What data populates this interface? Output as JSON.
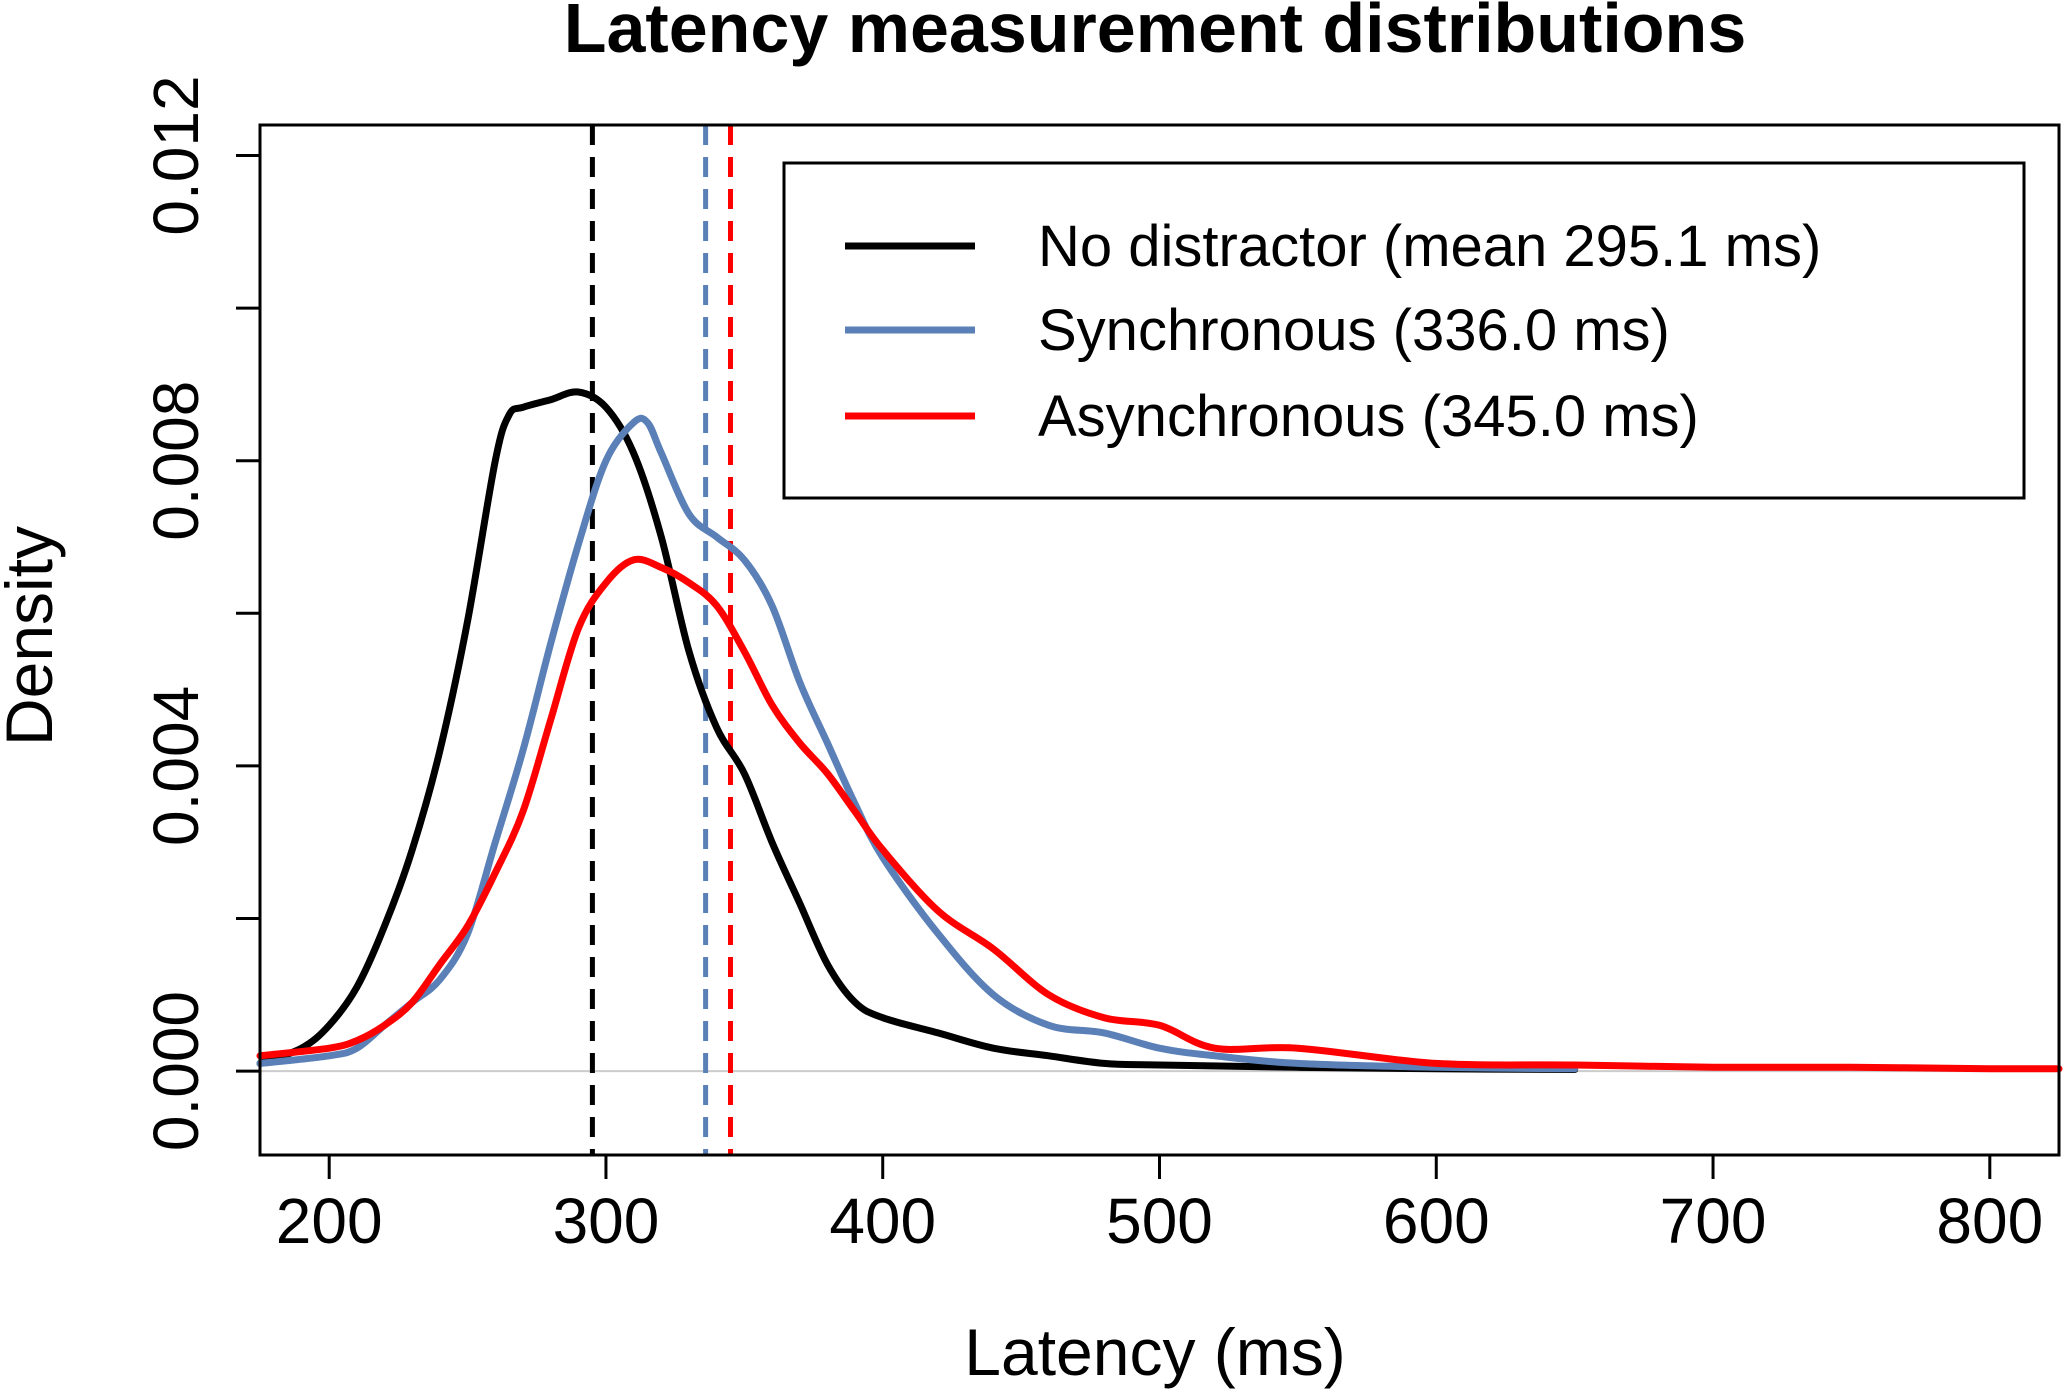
{
  "chart_data": {
    "type": "line",
    "title": "Latency measurement distributions",
    "xlabel": "Latency (ms)",
    "ylabel": "Density",
    "xlim": [
      175,
      825
    ],
    "ylim": [
      -0.0011,
      0.0124
    ],
    "x_ticks": [
      200,
      300,
      400,
      500,
      600,
      700,
      800
    ],
    "x_tick_labels": [
      "200",
      "300",
      "400",
      "500",
      "600",
      "700",
      "800"
    ],
    "y_ticks": [
      0.0,
      0.002,
      0.004,
      0.006,
      0.008,
      0.01,
      0.012
    ],
    "y_tick_labels": [
      "0.000",
      "",
      "0.004",
      "",
      "0.008",
      "",
      "0.012"
    ],
    "grid": false,
    "legend_position": "top-right",
    "baseline": 0,
    "series": [
      {
        "name": "No distractor (mean 295.1 ms)",
        "color": "#000000",
        "mean": 295.1,
        "x": [
          175,
          190,
          200,
          210,
          220,
          230,
          240,
          250,
          260,
          265,
          270,
          280,
          290,
          300,
          310,
          320,
          330,
          340,
          350,
          360,
          370,
          380,
          390,
          400,
          420,
          440,
          460,
          480,
          500,
          550,
          600,
          650
        ],
        "y": [
          0.0001,
          0.0003,
          0.0006,
          0.0011,
          0.0019,
          0.0029,
          0.0042,
          0.0059,
          0.008,
          0.0086,
          0.0087,
          0.0088,
          0.0089,
          0.0087,
          0.0081,
          0.007,
          0.0055,
          0.0045,
          0.0039,
          0.003,
          0.0022,
          0.0014,
          0.0009,
          0.0007,
          0.0005,
          0.0003,
          0.0002,
          0.0001,
          8e-05,
          5e-05,
          3e-05,
          2e-05
        ]
      },
      {
        "name": "Synchronous (336.0 ms)",
        "color": "#5a80b7",
        "mean": 336.0,
        "x": [
          175,
          200,
          210,
          220,
          230,
          240,
          250,
          260,
          270,
          280,
          290,
          300,
          310,
          315,
          320,
          330,
          340,
          350,
          360,
          370,
          380,
          390,
          400,
          420,
          440,
          460,
          480,
          500,
          520,
          550,
          600,
          650
        ],
        "y": [
          0.0001,
          0.0002,
          0.0003,
          0.0006,
          0.0009,
          0.0012,
          0.0018,
          0.003,
          0.0042,
          0.0056,
          0.0069,
          0.008,
          0.0085,
          0.0085,
          0.0081,
          0.0073,
          0.007,
          0.0067,
          0.0061,
          0.0051,
          0.0043,
          0.0035,
          0.0028,
          0.0018,
          0.001,
          0.0006,
          0.0005,
          0.0003,
          0.0002,
          0.0001,
          5e-05,
          3e-05
        ]
      },
      {
        "name": "Asynchronous (345.0 ms)",
        "color": "#ff0000",
        "mean": 345.0,
        "x": [
          175,
          200,
          210,
          220,
          230,
          240,
          250,
          260,
          270,
          280,
          290,
          300,
          310,
          320,
          330,
          340,
          350,
          360,
          370,
          380,
          390,
          400,
          420,
          440,
          460,
          480,
          500,
          520,
          550,
          600,
          650,
          700,
          750,
          800,
          825
        ],
        "y": [
          0.0002,
          0.0003,
          0.0004,
          0.0006,
          0.0009,
          0.0014,
          0.0019,
          0.0026,
          0.0034,
          0.0046,
          0.0058,
          0.0064,
          0.0067,
          0.0066,
          0.0064,
          0.0061,
          0.0055,
          0.0048,
          0.0043,
          0.0039,
          0.0034,
          0.0029,
          0.0021,
          0.0016,
          0.001,
          0.0007,
          0.0006,
          0.0003,
          0.0003,
          0.0001,
          8e-05,
          5e-05,
          5e-05,
          3e-05,
          3e-05
        ]
      }
    ]
  }
}
